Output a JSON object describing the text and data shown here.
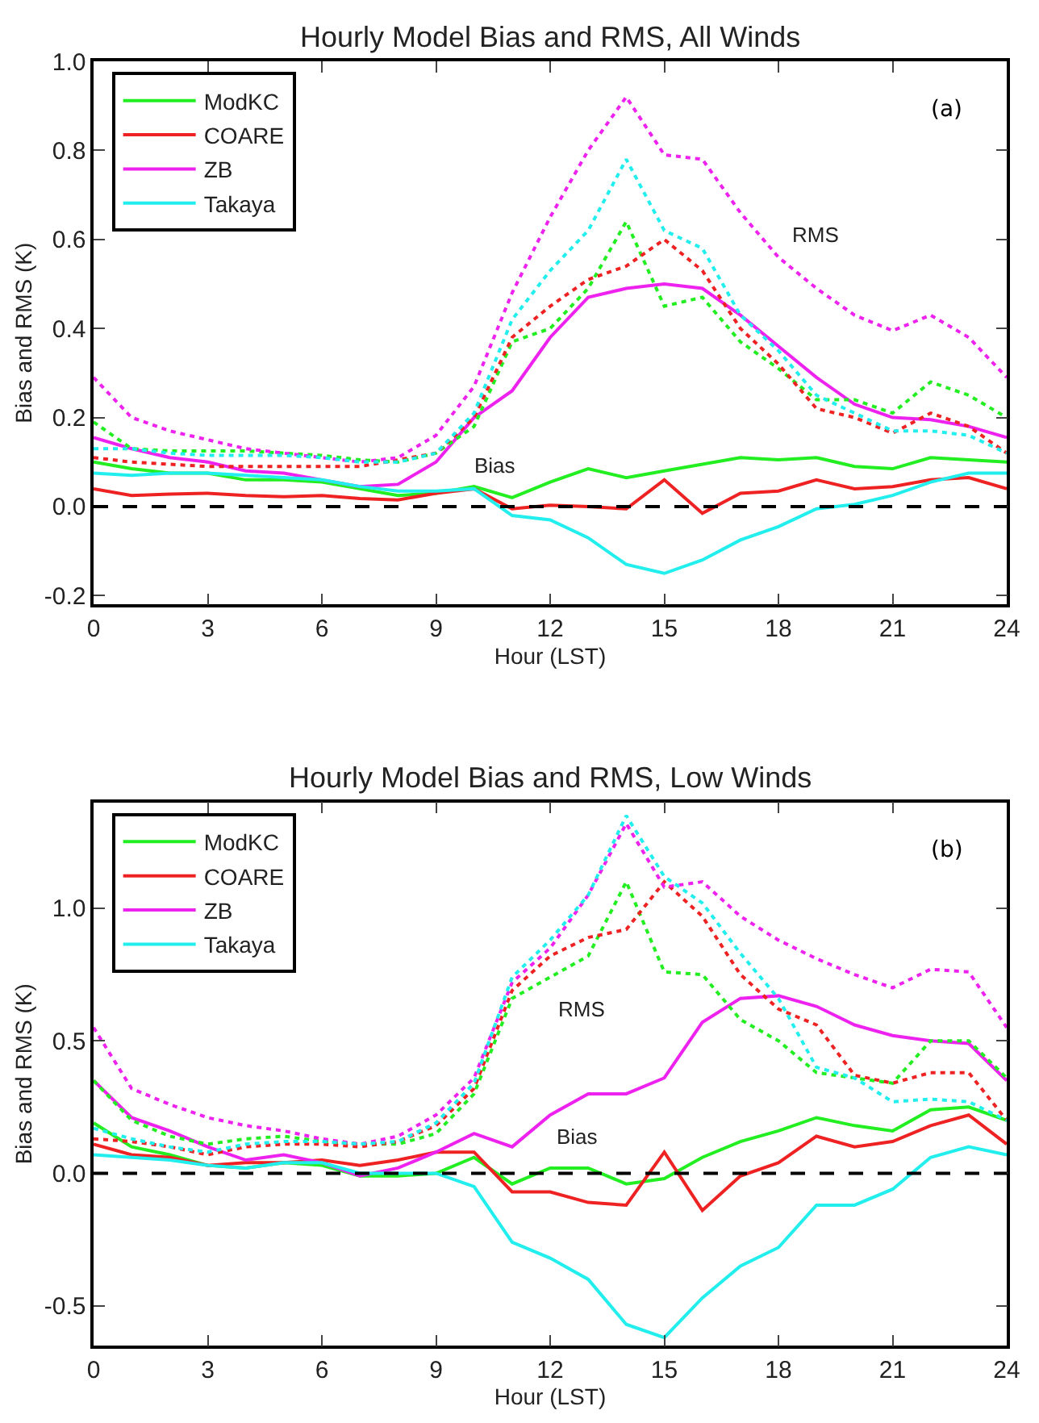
{
  "chart_data": [
    {
      "type": "line",
      "title": "Hourly Model Bias and RMS, All Winds",
      "xlabel": "Hour (LST)",
      "ylabel": "Bias and RMS (K)",
      "x": [
        0,
        1,
        2,
        3,
        4,
        5,
        6,
        7,
        8,
        9,
        10,
        11,
        12,
        13,
        14,
        15,
        16,
        17,
        18,
        19,
        20,
        21,
        22,
        23,
        24
      ],
      "xlim": [
        0,
        24
      ],
      "xticks": [
        0,
        3,
        6,
        9,
        12,
        15,
        18,
        21,
        24
      ],
      "ylim": [
        -0.22,
        1.0
      ],
      "yticks": [
        {
          "value": -0.2,
          "label": "-0.2"
        },
        {
          "value": 0,
          "label": "0.0"
        },
        {
          "value": 0.2,
          "label": "0.2"
        },
        {
          "value": 0.4,
          "label": "0.4"
        },
        {
          "value": 0.6,
          "label": "0.6"
        },
        {
          "value": 0.8,
          "label": "0.8"
        },
        {
          "value": 1.0,
          "label": "1.0"
        }
      ],
      "legend": "top left",
      "marker": "none",
      "series": [
        {
          "name": "ModKC",
          "color": "#22ee22",
          "line_style": "solid",
          "values": [
            0.1,
            0.085,
            0.075,
            0.075,
            0.06,
            0.06,
            0.055,
            0.04,
            0.025,
            0.03,
            0.045,
            0.02,
            0.055,
            0.085,
            0.065,
            0.08,
            0.095,
            0.11,
            0.105,
            0.11,
            0.09,
            0.085,
            0.11,
            0.105,
            0.1
          ]
        },
        {
          "name": "COARE",
          "color": "#ee2222",
          "line_style": "solid",
          "values": [
            0.04,
            0.025,
            0.028,
            0.03,
            0.025,
            0.022,
            0.025,
            0.018,
            0.015,
            0.03,
            0.04,
            -0.005,
            0.003,
            0.0,
            -0.005,
            0.06,
            -0.015,
            0.03,
            0.035,
            0.06,
            0.04,
            0.045,
            0.06,
            0.065,
            0.04
          ]
        },
        {
          "name": "ZB",
          "color": "#ee22ee",
          "line_style": "solid",
          "values": [
            0.155,
            0.13,
            0.11,
            0.1,
            0.08,
            0.075,
            0.06,
            0.045,
            0.05,
            0.1,
            0.2,
            0.26,
            0.38,
            0.47,
            0.49,
            0.5,
            0.49,
            0.43,
            0.36,
            0.29,
            0.23,
            0.2,
            0.195,
            0.18,
            0.155
          ]
        },
        {
          "name": "Takaya",
          "color": "#22eeee",
          "line_style": "solid",
          "values": [
            0.075,
            0.07,
            0.075,
            0.075,
            0.07,
            0.065,
            0.06,
            0.045,
            0.035,
            0.035,
            0.04,
            -0.02,
            -0.03,
            -0.07,
            -0.13,
            -0.15,
            -0.12,
            -0.075,
            -0.045,
            -0.005,
            0.005,
            0.025,
            0.055,
            0.075,
            0.075
          ]
        },
        {
          "color": "#22ee22",
          "line_style": "dotted",
          "values": [
            0.19,
            0.13,
            0.125,
            0.125,
            0.125,
            0.12,
            0.115,
            0.105,
            0.1,
            0.12,
            0.18,
            0.37,
            0.4,
            0.49,
            0.64,
            0.45,
            0.47,
            0.37,
            0.31,
            0.24,
            0.24,
            0.21,
            0.28,
            0.25,
            0.2
          ]
        },
        {
          "color": "#ee2222",
          "line_style": "dotted",
          "values": [
            0.11,
            0.1,
            0.095,
            0.09,
            0.09,
            0.09,
            0.09,
            0.09,
            0.105,
            0.12,
            0.2,
            0.38,
            0.45,
            0.51,
            0.54,
            0.6,
            0.53,
            0.4,
            0.32,
            0.22,
            0.2,
            0.165,
            0.21,
            0.18,
            0.12
          ]
        },
        {
          "color": "#ee22ee",
          "line_style": "dotted",
          "values": [
            0.29,
            0.2,
            0.17,
            0.15,
            0.13,
            0.12,
            0.11,
            0.1,
            0.11,
            0.16,
            0.27,
            0.48,
            0.65,
            0.8,
            0.92,
            0.79,
            0.78,
            0.66,
            0.56,
            0.49,
            0.43,
            0.395,
            0.43,
            0.38,
            0.29
          ]
        },
        {
          "color": "#22eeee",
          "line_style": "dotted",
          "values": [
            0.13,
            0.13,
            0.12,
            0.115,
            0.115,
            0.115,
            0.11,
            0.1,
            0.1,
            0.12,
            0.21,
            0.42,
            0.53,
            0.62,
            0.78,
            0.62,
            0.58,
            0.43,
            0.35,
            0.25,
            0.21,
            0.17,
            0.17,
            0.16,
            0.12
          ]
        }
      ],
      "ref_lines": [
        {
          "axis": "y",
          "value": 0,
          "color": "#000000",
          "line_style": "dashed"
        }
      ],
      "annotations": [
        "(a)",
        "RMS",
        "Bias"
      ]
    },
    {
      "type": "line",
      "title": "Hourly Model Bias and RMS, Low Winds",
      "xlabel": "Hour (LST)",
      "ylabel": "Bias and RMS (K)",
      "x": [
        0,
        1,
        2,
        3,
        4,
        5,
        6,
        7,
        8,
        9,
        10,
        11,
        12,
        13,
        14,
        15,
        16,
        17,
        18,
        19,
        20,
        21,
        22,
        23,
        24
      ],
      "xlim": [
        0,
        24
      ],
      "xticks": [
        0,
        3,
        6,
        9,
        12,
        15,
        18,
        21,
        24
      ],
      "ylim": [
        -0.65,
        1.4
      ],
      "yticks": [
        {
          "value": -0.5,
          "label": "-0.5"
        },
        {
          "value": 0,
          "label": "0.0"
        },
        {
          "value": 0.5,
          "label": "0.5"
        },
        {
          "value": 1.0,
          "label": "1.0"
        }
      ],
      "legend": "top left",
      "marker": "none",
      "series": [
        {
          "name": "ModKC",
          "color": "#22ee22",
          "line_style": "solid",
          "values": [
            0.19,
            0.1,
            0.07,
            0.03,
            0.02,
            0.04,
            0.03,
            -0.01,
            -0.01,
            0.0,
            0.06,
            -0.04,
            0.02,
            0.02,
            -0.04,
            -0.02,
            0.06,
            0.12,
            0.16,
            0.21,
            0.18,
            0.16,
            0.24,
            0.25,
            0.2
          ]
        },
        {
          "name": "COARE",
          "color": "#ee2222",
          "line_style": "solid",
          "values": [
            0.11,
            0.07,
            0.06,
            0.03,
            0.04,
            0.04,
            0.05,
            0.03,
            0.05,
            0.08,
            0.08,
            -0.07,
            -0.07,
            -0.11,
            -0.12,
            0.08,
            -0.14,
            -0.01,
            0.04,
            0.14,
            0.1,
            0.12,
            0.18,
            0.22,
            0.11
          ]
        },
        {
          "name": "ZB",
          "color": "#ee22ee",
          "line_style": "solid",
          "values": [
            0.35,
            0.21,
            0.16,
            0.1,
            0.05,
            0.07,
            0.04,
            -0.01,
            0.02,
            0.08,
            0.15,
            0.1,
            0.22,
            0.3,
            0.3,
            0.36,
            0.57,
            0.66,
            0.67,
            0.63,
            0.56,
            0.52,
            0.5,
            0.49,
            0.35
          ]
        },
        {
          "name": "Takaya",
          "color": "#22eeee",
          "line_style": "solid",
          "values": [
            0.07,
            0.06,
            0.05,
            0.03,
            0.02,
            0.04,
            0.04,
            0.0,
            0.0,
            0.0,
            -0.05,
            -0.26,
            -0.32,
            -0.4,
            -0.57,
            -0.62,
            -0.47,
            -0.35,
            -0.28,
            -0.12,
            -0.12,
            -0.06,
            0.06,
            0.1,
            0.07
          ]
        },
        {
          "color": "#22ee22",
          "line_style": "dotted",
          "values": [
            0.35,
            0.2,
            0.14,
            0.11,
            0.13,
            0.14,
            0.12,
            0.11,
            0.11,
            0.15,
            0.3,
            0.66,
            0.74,
            0.82,
            1.1,
            0.76,
            0.75,
            0.58,
            0.5,
            0.38,
            0.36,
            0.34,
            0.5,
            0.5,
            0.36
          ]
        },
        {
          "color": "#ee2222",
          "line_style": "dotted",
          "values": [
            0.13,
            0.12,
            0.1,
            0.07,
            0.1,
            0.11,
            0.11,
            0.1,
            0.12,
            0.18,
            0.32,
            0.69,
            0.82,
            0.89,
            0.92,
            1.1,
            0.97,
            0.75,
            0.62,
            0.56,
            0.37,
            0.34,
            0.38,
            0.38,
            0.2
          ]
        },
        {
          "color": "#ee22ee",
          "line_style": "dotted",
          "values": [
            0.55,
            0.32,
            0.26,
            0.21,
            0.18,
            0.16,
            0.13,
            0.11,
            0.14,
            0.22,
            0.36,
            0.72,
            0.85,
            1.05,
            1.32,
            1.08,
            1.1,
            0.97,
            0.88,
            0.81,
            0.75,
            0.7,
            0.77,
            0.76,
            0.55
          ]
        },
        {
          "color": "#22eeee",
          "line_style": "dotted",
          "values": [
            0.17,
            0.13,
            0.1,
            0.08,
            0.11,
            0.12,
            0.12,
            0.11,
            0.12,
            0.19,
            0.34,
            0.74,
            0.88,
            1.05,
            1.35,
            1.12,
            1.02,
            0.83,
            0.66,
            0.4,
            0.36,
            0.27,
            0.28,
            0.27,
            0.2
          ]
        }
      ],
      "ref_lines": [
        {
          "axis": "y",
          "value": 0,
          "color": "#000000",
          "line_style": "dashed"
        }
      ],
      "annotations": [
        "(b)",
        "RMS",
        "Bias"
      ]
    }
  ]
}
